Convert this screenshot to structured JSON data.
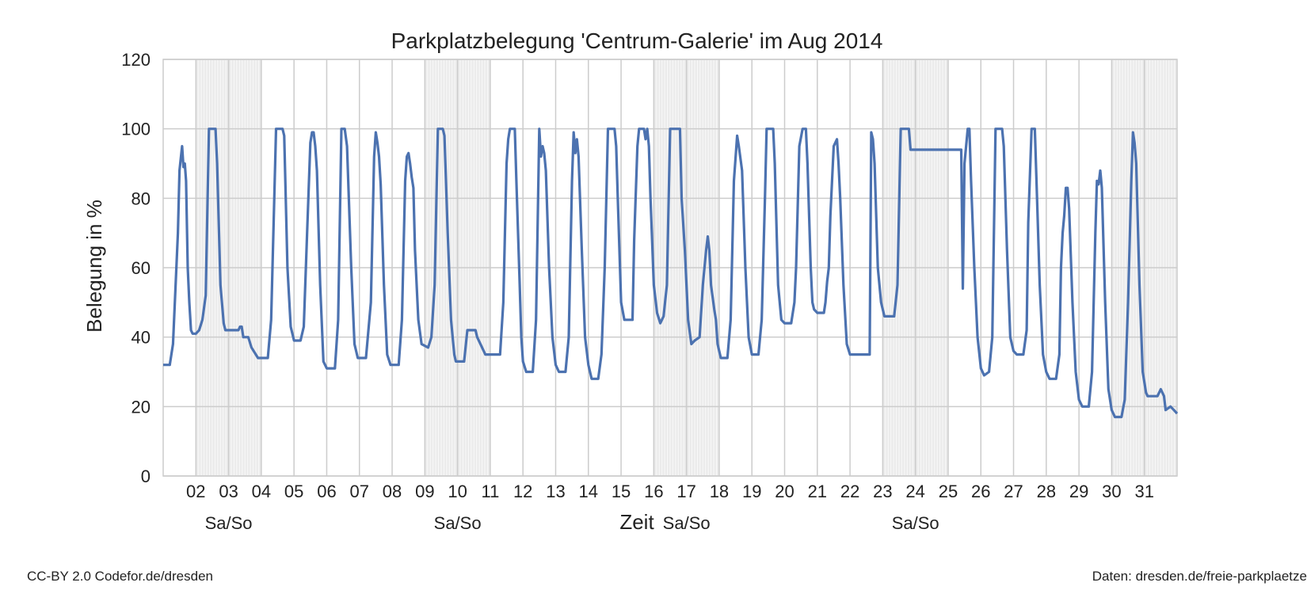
{
  "chart_data": {
    "type": "line",
    "title": "Parkplatzbelegung 'Centrum-Galerie' im Aug 2014",
    "xlabel": "Zeit",
    "ylabel": "Belegung in %",
    "ylim": [
      0,
      120
    ],
    "yticks": [
      0,
      20,
      40,
      60,
      80,
      100,
      120
    ],
    "xlim_days": [
      1,
      32
    ],
    "xtick_labels": [
      "02",
      "03",
      "04",
      "05",
      "06",
      "07",
      "08",
      "09",
      "10",
      "11",
      "12",
      "13",
      "14",
      "15",
      "16",
      "17",
      "18",
      "19",
      "20",
      "21",
      "22",
      "23",
      "24",
      "25",
      "26",
      "27",
      "28",
      "29",
      "30",
      "31"
    ],
    "weekend_label": "Sa/So",
    "weekends": [
      [
        2,
        4
      ],
      [
        9,
        11
      ],
      [
        16,
        18
      ],
      [
        23,
        25
      ],
      [
        30,
        32
      ]
    ],
    "grid": true,
    "line_color": "#4c72b0",
    "weekend_shade_color": "#ebebeb",
    "series": [
      {
        "points": [
          [
            1.0,
            32
          ],
          [
            1.2,
            32
          ],
          [
            1.3,
            38
          ],
          [
            1.45,
            70
          ],
          [
            1.5,
            88
          ],
          [
            1.58,
            95
          ],
          [
            1.62,
            89
          ],
          [
            1.66,
            90
          ],
          [
            1.7,
            85
          ],
          [
            1.75,
            60
          ],
          [
            1.8,
            50
          ],
          [
            1.85,
            42
          ],
          [
            1.9,
            41
          ],
          [
            2.0,
            41
          ],
          [
            2.1,
            42
          ],
          [
            2.2,
            45
          ],
          [
            2.3,
            52
          ],
          [
            2.4,
            100
          ],
          [
            2.6,
            100
          ],
          [
            2.65,
            90
          ],
          [
            2.75,
            55
          ],
          [
            2.85,
            44
          ],
          [
            2.9,
            42
          ],
          [
            3.3,
            42
          ],
          [
            3.35,
            43
          ],
          [
            3.4,
            43
          ],
          [
            3.45,
            40
          ],
          [
            3.6,
            40
          ],
          [
            3.7,
            37
          ],
          [
            3.9,
            34
          ],
          [
            4.2,
            34
          ],
          [
            4.3,
            45
          ],
          [
            4.45,
            100
          ],
          [
            4.65,
            100
          ],
          [
            4.7,
            98
          ],
          [
            4.8,
            60
          ],
          [
            4.9,
            43
          ],
          [
            5.0,
            39
          ],
          [
            5.2,
            39
          ],
          [
            5.3,
            43
          ],
          [
            5.4,
            70
          ],
          [
            5.5,
            96
          ],
          [
            5.55,
            99
          ],
          [
            5.6,
            99
          ],
          [
            5.65,
            95
          ],
          [
            5.7,
            88
          ],
          [
            5.8,
            55
          ],
          [
            5.9,
            33
          ],
          [
            6.0,
            31
          ],
          [
            6.25,
            31
          ],
          [
            6.35,
            45
          ],
          [
            6.45,
            100
          ],
          [
            6.55,
            100
          ],
          [
            6.62,
            95
          ],
          [
            6.75,
            60
          ],
          [
            6.85,
            38
          ],
          [
            6.95,
            34
          ],
          [
            7.2,
            34
          ],
          [
            7.35,
            50
          ],
          [
            7.45,
            92
          ],
          [
            7.5,
            99
          ],
          [
            7.55,
            96
          ],
          [
            7.6,
            92
          ],
          [
            7.65,
            84
          ],
          [
            7.75,
            55
          ],
          [
            7.85,
            35
          ],
          [
            7.95,
            32
          ],
          [
            8.2,
            32
          ],
          [
            8.3,
            45
          ],
          [
            8.4,
            85
          ],
          [
            8.45,
            92
          ],
          [
            8.5,
            93
          ],
          [
            8.55,
            90
          ],
          [
            8.6,
            86
          ],
          [
            8.65,
            83
          ],
          [
            8.7,
            65
          ],
          [
            8.8,
            45
          ],
          [
            8.9,
            38
          ],
          [
            9.1,
            37
          ],
          [
            9.2,
            40
          ],
          [
            9.3,
            55
          ],
          [
            9.4,
            100
          ],
          [
            9.55,
            100
          ],
          [
            9.6,
            98
          ],
          [
            9.7,
            70
          ],
          [
            9.8,
            45
          ],
          [
            9.9,
            35
          ],
          [
            9.95,
            33
          ],
          [
            10.2,
            33
          ],
          [
            10.3,
            42
          ],
          [
            10.55,
            42
          ],
          [
            10.6,
            40
          ],
          [
            10.75,
            37
          ],
          [
            10.85,
            35
          ],
          [
            11.3,
            35
          ],
          [
            11.4,
            50
          ],
          [
            11.5,
            90
          ],
          [
            11.55,
            97
          ],
          [
            11.6,
            100
          ],
          [
            11.75,
            100
          ],
          [
            11.8,
            85
          ],
          [
            11.9,
            55
          ],
          [
            11.95,
            40
          ],
          [
            12.0,
            33
          ],
          [
            12.1,
            30
          ],
          [
            12.3,
            30
          ],
          [
            12.4,
            45
          ],
          [
            12.5,
            100
          ],
          [
            12.55,
            92
          ],
          [
            12.6,
            95
          ],
          [
            12.65,
            93
          ],
          [
            12.7,
            88
          ],
          [
            12.8,
            60
          ],
          [
            12.9,
            40
          ],
          [
            13.0,
            32
          ],
          [
            13.1,
            30
          ],
          [
            13.3,
            30
          ],
          [
            13.4,
            40
          ],
          [
            13.5,
            85
          ],
          [
            13.55,
            99
          ],
          [
            13.6,
            93
          ],
          [
            13.65,
            97
          ],
          [
            13.7,
            92
          ],
          [
            13.8,
            65
          ],
          [
            13.9,
            40
          ],
          [
            14.0,
            32
          ],
          [
            14.1,
            28
          ],
          [
            14.3,
            28
          ],
          [
            14.4,
            35
          ],
          [
            14.5,
            60
          ],
          [
            14.6,
            100
          ],
          [
            14.8,
            100
          ],
          [
            14.85,
            95
          ],
          [
            14.9,
            80
          ],
          [
            15.0,
            50
          ],
          [
            15.1,
            45
          ],
          [
            15.35,
            45
          ],
          [
            15.4,
            68
          ],
          [
            15.5,
            95
          ],
          [
            15.55,
            100
          ],
          [
            15.7,
            100
          ],
          [
            15.75,
            97
          ],
          [
            15.8,
            100
          ],
          [
            15.85,
            95
          ],
          [
            15.9,
            80
          ],
          [
            16.0,
            55
          ],
          [
            16.1,
            47
          ],
          [
            16.2,
            44
          ],
          [
            16.3,
            46
          ],
          [
            16.4,
            55
          ],
          [
            16.5,
            100
          ],
          [
            16.8,
            100
          ],
          [
            16.85,
            80
          ],
          [
            16.95,
            65
          ],
          [
            17.05,
            45
          ],
          [
            17.15,
            38
          ],
          [
            17.25,
            39
          ],
          [
            17.4,
            40
          ],
          [
            17.5,
            55
          ],
          [
            17.6,
            65
          ],
          [
            17.65,
            69
          ],
          [
            17.7,
            65
          ],
          [
            17.75,
            55
          ],
          [
            17.85,
            48
          ],
          [
            17.9,
            45
          ],
          [
            17.95,
            38
          ],
          [
            18.05,
            34
          ],
          [
            18.25,
            34
          ],
          [
            18.35,
            45
          ],
          [
            18.45,
            85
          ],
          [
            18.55,
            98
          ],
          [
            18.6,
            95
          ],
          [
            18.7,
            88
          ],
          [
            18.8,
            60
          ],
          [
            18.9,
            40
          ],
          [
            19.0,
            35
          ],
          [
            19.2,
            35
          ],
          [
            19.3,
            45
          ],
          [
            19.4,
            80
          ],
          [
            19.45,
            100
          ],
          [
            19.65,
            100
          ],
          [
            19.7,
            90
          ],
          [
            19.8,
            55
          ],
          [
            19.9,
            45
          ],
          [
            20.0,
            44
          ],
          [
            20.2,
            44
          ],
          [
            20.3,
            50
          ],
          [
            20.35,
            60
          ],
          [
            20.45,
            95
          ],
          [
            20.55,
            100
          ],
          [
            20.65,
            100
          ],
          [
            20.7,
            90
          ],
          [
            20.8,
            60
          ],
          [
            20.85,
            50
          ],
          [
            20.9,
            48
          ],
          [
            21.0,
            47
          ],
          [
            21.2,
            47
          ],
          [
            21.25,
            50
          ],
          [
            21.3,
            56
          ],
          [
            21.35,
            60
          ],
          [
            21.4,
            75
          ],
          [
            21.5,
            95
          ],
          [
            21.6,
            97
          ],
          [
            21.65,
            90
          ],
          [
            21.7,
            80
          ],
          [
            21.8,
            55
          ],
          [
            21.9,
            38
          ],
          [
            22.0,
            35
          ],
          [
            22.6,
            35
          ],
          [
            22.65,
            99
          ],
          [
            22.7,
            97
          ],
          [
            22.75,
            90
          ],
          [
            22.85,
            60
          ],
          [
            22.95,
            50
          ],
          [
            23.05,
            46
          ],
          [
            23.35,
            46
          ],
          [
            23.45,
            55
          ],
          [
            23.55,
            100
          ],
          [
            23.8,
            100
          ],
          [
            23.85,
            94
          ],
          [
            25.4,
            94
          ],
          [
            25.45,
            54
          ],
          [
            25.5,
            90
          ],
          [
            25.6,
            100
          ],
          [
            25.65,
            100
          ],
          [
            25.7,
            85
          ],
          [
            25.8,
            60
          ],
          [
            25.9,
            40
          ],
          [
            26.0,
            31
          ],
          [
            26.1,
            29
          ],
          [
            26.25,
            30
          ],
          [
            26.35,
            40
          ],
          [
            26.45,
            100
          ],
          [
            26.65,
            100
          ],
          [
            26.7,
            95
          ],
          [
            26.8,
            65
          ],
          [
            26.9,
            40
          ],
          [
            27.0,
            36
          ],
          [
            27.1,
            35
          ],
          [
            27.3,
            35
          ],
          [
            27.4,
            42
          ],
          [
            27.45,
            73
          ],
          [
            27.55,
            100
          ],
          [
            27.65,
            100
          ],
          [
            27.7,
            85
          ],
          [
            27.8,
            55
          ],
          [
            27.9,
            35
          ],
          [
            28.0,
            30
          ],
          [
            28.1,
            28
          ],
          [
            28.3,
            28
          ],
          [
            28.4,
            35
          ],
          [
            28.45,
            60
          ],
          [
            28.5,
            70
          ],
          [
            28.55,
            75
          ],
          [
            28.6,
            83
          ],
          [
            28.65,
            83
          ],
          [
            28.7,
            77
          ],
          [
            28.8,
            50
          ],
          [
            28.9,
            30
          ],
          [
            29.0,
            22
          ],
          [
            29.1,
            20
          ],
          [
            29.3,
            20
          ],
          [
            29.4,
            30
          ],
          [
            29.5,
            70
          ],
          [
            29.55,
            85
          ],
          [
            29.6,
            84
          ],
          [
            29.65,
            88
          ],
          [
            29.7,
            83
          ],
          [
            29.8,
            50
          ],
          [
            29.9,
            25
          ],
          [
            30.0,
            19
          ],
          [
            30.1,
            17
          ],
          [
            30.3,
            17
          ],
          [
            30.4,
            22
          ],
          [
            30.5,
            50
          ],
          [
            30.6,
            85
          ],
          [
            30.65,
            99
          ],
          [
            30.7,
            96
          ],
          [
            30.75,
            90
          ],
          [
            30.85,
            55
          ],
          [
            30.95,
            30
          ],
          [
            31.05,
            24
          ],
          [
            31.1,
            23
          ],
          [
            31.4,
            23
          ],
          [
            31.5,
            25
          ],
          [
            31.6,
            23
          ],
          [
            31.65,
            19
          ],
          [
            31.8,
            20
          ],
          [
            31.9,
            19
          ],
          [
            32.0,
            18
          ]
        ]
      }
    ]
  },
  "footer": {
    "left": "CC-BY 2.0 Codefor.de/dresden",
    "right": "Daten: dresden.de/freie-parkplaetze"
  }
}
